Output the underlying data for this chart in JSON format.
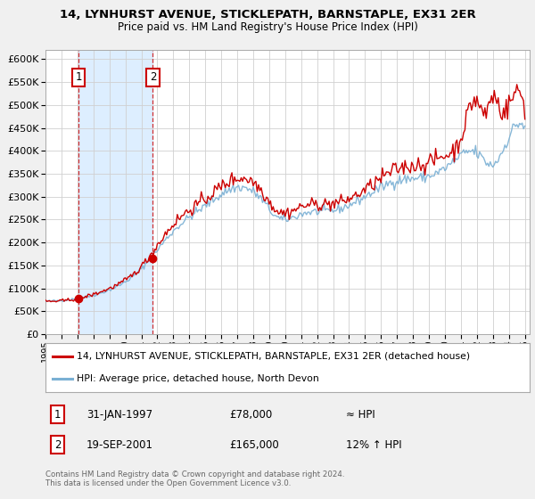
{
  "title": "14, LYNHURST AVENUE, STICKLEPATH, BARNSTAPLE, EX31 2ER",
  "subtitle": "Price paid vs. HM Land Registry's House Price Index (HPI)",
  "red_color": "#cc0000",
  "blue_color": "#7ab0d4",
  "shade_color": "#ddeeff",
  "background_color": "#f0f0f0",
  "plot_background": "#ffffff",
  "legend_line1": "14, LYNHURST AVENUE, STICKLEPATH, BARNSTAPLE, EX31 2ER (detached house)",
  "legend_line2": "HPI: Average price, detached house, North Devon",
  "footer": "Contains HM Land Registry data © Crown copyright and database right 2024.\nThis data is licensed under the Open Government Licence v3.0.",
  "sale1_x": 1997.083,
  "sale1_price": 78000,
  "sale2_x": 2001.722,
  "sale2_price": 165000
}
